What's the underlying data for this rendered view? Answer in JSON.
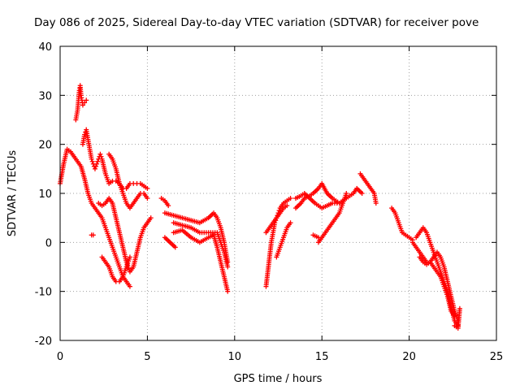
{
  "chart_data": {
    "type": "scatter",
    "title": "Day 086 of 2025, Sidereal Day-to-day VTEC variation (SDTVAR) for receiver pove",
    "xlabel": "GPS time / hours",
    "ylabel": "SDTVAR / TECUs",
    "xlim": [
      0,
      25
    ],
    "ylim": [
      -20,
      40
    ],
    "xticks": [
      0,
      5,
      10,
      15,
      20,
      25
    ],
    "yticks": [
      -20,
      -10,
      0,
      10,
      20,
      30,
      40
    ],
    "grid": true,
    "marker": "+",
    "color": "#ff0000",
    "series": [
      {
        "name": "track-1",
        "x": [
          0.0,
          0.2,
          0.4,
          0.6,
          0.8,
          1.0,
          1.2,
          1.4,
          1.6,
          1.8,
          2.0,
          2.2,
          2.4,
          2.6,
          2.8,
          3.0,
          3.2,
          3.4,
          3.6,
          3.8,
          4.0
        ],
        "y": [
          12,
          16,
          19,
          18.5,
          17.5,
          16.5,
          15.5,
          13,
          10,
          8,
          7,
          6,
          5,
          3,
          1,
          -1,
          -3,
          -5,
          -7,
          -8,
          -9
        ]
      },
      {
        "name": "track-2",
        "x": [
          0.9,
          1.0,
          1.05,
          1.1,
          1.15,
          1.2,
          1.25,
          1.3,
          1.4,
          1.5
        ],
        "y": [
          25,
          27,
          29,
          31,
          32,
          30,
          29,
          28,
          28.5,
          29
        ]
      },
      {
        "name": "track-3",
        "x": [
          1.3,
          1.4,
          1.5,
          1.6,
          1.7,
          1.8,
          1.9,
          2.0,
          2.1,
          2.2,
          2.3,
          2.4,
          2.6,
          2.8,
          3.0,
          3.2,
          3.4,
          3.6,
          3.8,
          4.0,
          4.2,
          4.4,
          4.6,
          4.8,
          5.0
        ],
        "y": [
          20,
          22,
          23,
          21,
          19,
          17,
          16,
          15,
          16,
          17,
          18,
          17,
          14,
          12,
          12.5,
          12.5,
          12,
          11,
          11,
          12,
          12,
          12,
          12,
          11.5,
          11
        ]
      },
      {
        "name": "track-4",
        "x": [
          2.8,
          3.0,
          3.2,
          3.4,
          3.6,
          3.8,
          4.0,
          4.2,
          4.4,
          4.6,
          4.8,
          5.0
        ],
        "y": [
          18,
          17,
          15,
          12,
          10,
          8,
          7,
          8,
          9,
          10,
          10,
          9
        ]
      },
      {
        "name": "track-5",
        "x": [
          2.2,
          2.4,
          2.6,
          2.8,
          3.0,
          3.2,
          3.4,
          3.6,
          3.8,
          4.0,
          4.2,
          4.4,
          4.6,
          4.8,
          5.0,
          5.2
        ],
        "y": [
          8,
          7.5,
          8,
          9,
          8,
          5,
          2,
          -1,
          -4,
          -6,
          -5,
          -2,
          1,
          3,
          4,
          5
        ]
      },
      {
        "name": "track-6",
        "x": [
          2.4,
          2.6,
          2.8,
          3.0,
          3.2,
          3.4,
          3.6,
          3.8,
          4.0
        ],
        "y": [
          -3,
          -4,
          -5,
          -7,
          -8,
          -8,
          -7,
          -5,
          -3
        ]
      },
      {
        "name": "track-7",
        "x": [
          1.8,
          1.9
        ],
        "y": [
          1.5,
          1.5
        ]
      },
      {
        "name": "track-8",
        "x": [
          5.8,
          6.0,
          6.2
        ],
        "y": [
          9,
          8.5,
          7.5
        ]
      },
      {
        "name": "track-9",
        "x": [
          6.0,
          6.5,
          7.0,
          7.5,
          8.0,
          8.5,
          8.8,
          9.0,
          9.2,
          9.4,
          9.5,
          9.6
        ],
        "y": [
          6,
          5.5,
          5,
          4.5,
          4,
          5,
          6,
          5,
          3,
          0,
          -2,
          -4
        ]
      },
      {
        "name": "track-10",
        "x": [
          6.5,
          7.0,
          7.5,
          8.0,
          8.5,
          9.0,
          9.2,
          9.4,
          9.6
        ],
        "y": [
          4,
          3.5,
          3,
          2,
          2,
          2,
          0,
          -2,
          -5
        ]
      },
      {
        "name": "track-11",
        "x": [
          6.5,
          7.0,
          7.5,
          8.0,
          8.5,
          8.8,
          9.0,
          9.2,
          9.4,
          9.6
        ],
        "y": [
          2,
          2.5,
          1,
          0,
          1,
          1.5,
          -1,
          -4,
          -7,
          -10
        ]
      },
      {
        "name": "track-12",
        "x": [
          6.0,
          6.3,
          6.6
        ],
        "y": [
          1,
          0,
          -1
        ]
      },
      {
        "name": "track-13",
        "x": [
          11.8,
          11.9,
          12.0,
          12.1,
          12.2,
          12.3,
          12.4,
          12.5,
          12.6,
          12.8,
          13.0,
          13.2
        ],
        "y": [
          -9,
          -6,
          -3,
          0,
          2,
          4,
          5,
          6,
          7,
          8,
          8.5,
          9
        ]
      },
      {
        "name": "track-14",
        "x": [
          11.8,
          12.0,
          12.2,
          12.4,
          12.6,
          12.8,
          13.0
        ],
        "y": [
          2,
          3,
          4,
          5,
          6,
          7,
          7.5
        ]
      },
      {
        "name": "track-15",
        "x": [
          12.4,
          12.6,
          12.8,
          13.0,
          13.2
        ],
        "y": [
          -3,
          -1,
          1,
          3,
          4
        ]
      },
      {
        "name": "track-16",
        "x": [
          13.5,
          13.8,
          14.0,
          14.3,
          14.5,
          14.8,
          15.0,
          15.3,
          15.6,
          16.0,
          16.4,
          16.8,
          17.0
        ],
        "y": [
          7,
          8,
          9,
          9.5,
          10,
          11,
          12,
          10,
          9,
          8,
          9,
          10,
          11
        ]
      },
      {
        "name": "track-17",
        "x": [
          13.5,
          13.8,
          14.0,
          14.3,
          14.6,
          15.0,
          15.3,
          15.6,
          16.0
        ],
        "y": [
          9,
          9.5,
          10,
          9,
          8,
          7,
          7.5,
          8,
          8
        ]
      },
      {
        "name": "track-18",
        "x": [
          14.8,
          15.0,
          15.2,
          15.4,
          15.6,
          15.8,
          16.0,
          16.2,
          16.4
        ],
        "y": [
          0,
          1,
          2,
          3,
          4,
          5,
          6,
          8,
          10
        ]
      },
      {
        "name": "track-19",
        "x": [
          14.5,
          14.8
        ],
        "y": [
          1.5,
          1
        ]
      },
      {
        "name": "track-20",
        "x": [
          17.2,
          17.4,
          17.6,
          17.8,
          18.0,
          18.1
        ],
        "y": [
          14,
          13,
          12,
          11,
          10,
          8
        ]
      },
      {
        "name": "track-21",
        "x": [
          17.0,
          17.3
        ],
        "y": [
          11,
          10
        ]
      },
      {
        "name": "track-22",
        "x": [
          19.0,
          19.2,
          19.4,
          19.6,
          19.8,
          20.0,
          20.2
        ],
        "y": [
          7,
          6,
          4,
          2,
          1.5,
          1,
          0.5
        ]
      },
      {
        "name": "track-23",
        "x": [
          20.2,
          20.4,
          20.6,
          20.8,
          21.0,
          21.2,
          21.4,
          21.6,
          21.8,
          22.0,
          22.2,
          22.4,
          22.6,
          22.8
        ],
        "y": [
          0,
          -1,
          -2,
          -3,
          -4,
          -4,
          -3,
          -2,
          -3,
          -5,
          -8,
          -11,
          -14,
          -16
        ]
      },
      {
        "name": "track-24",
        "x": [
          20.4,
          20.6,
          20.8,
          21.0,
          21.2,
          21.4,
          21.6,
          21.8,
          22.0,
          22.2,
          22.4,
          22.6,
          22.8
        ],
        "y": [
          1,
          2,
          3,
          2,
          0,
          -2,
          -4,
          -6,
          -8,
          -10,
          -13,
          -16,
          -17
        ]
      },
      {
        "name": "track-25",
        "x": [
          20.6,
          20.8,
          21.0,
          21.2,
          21.4,
          21.6,
          21.8,
          22.0,
          22.2,
          22.4,
          22.6
        ],
        "y": [
          -3,
          -4,
          -4.5,
          -4,
          -5,
          -6,
          -7,
          -9,
          -11,
          -14,
          -15
        ]
      },
      {
        "name": "track-26",
        "x": [
          22.6,
          22.8,
          22.9
        ],
        "y": [
          -17,
          -17.5,
          -13.5
        ]
      }
    ]
  }
}
